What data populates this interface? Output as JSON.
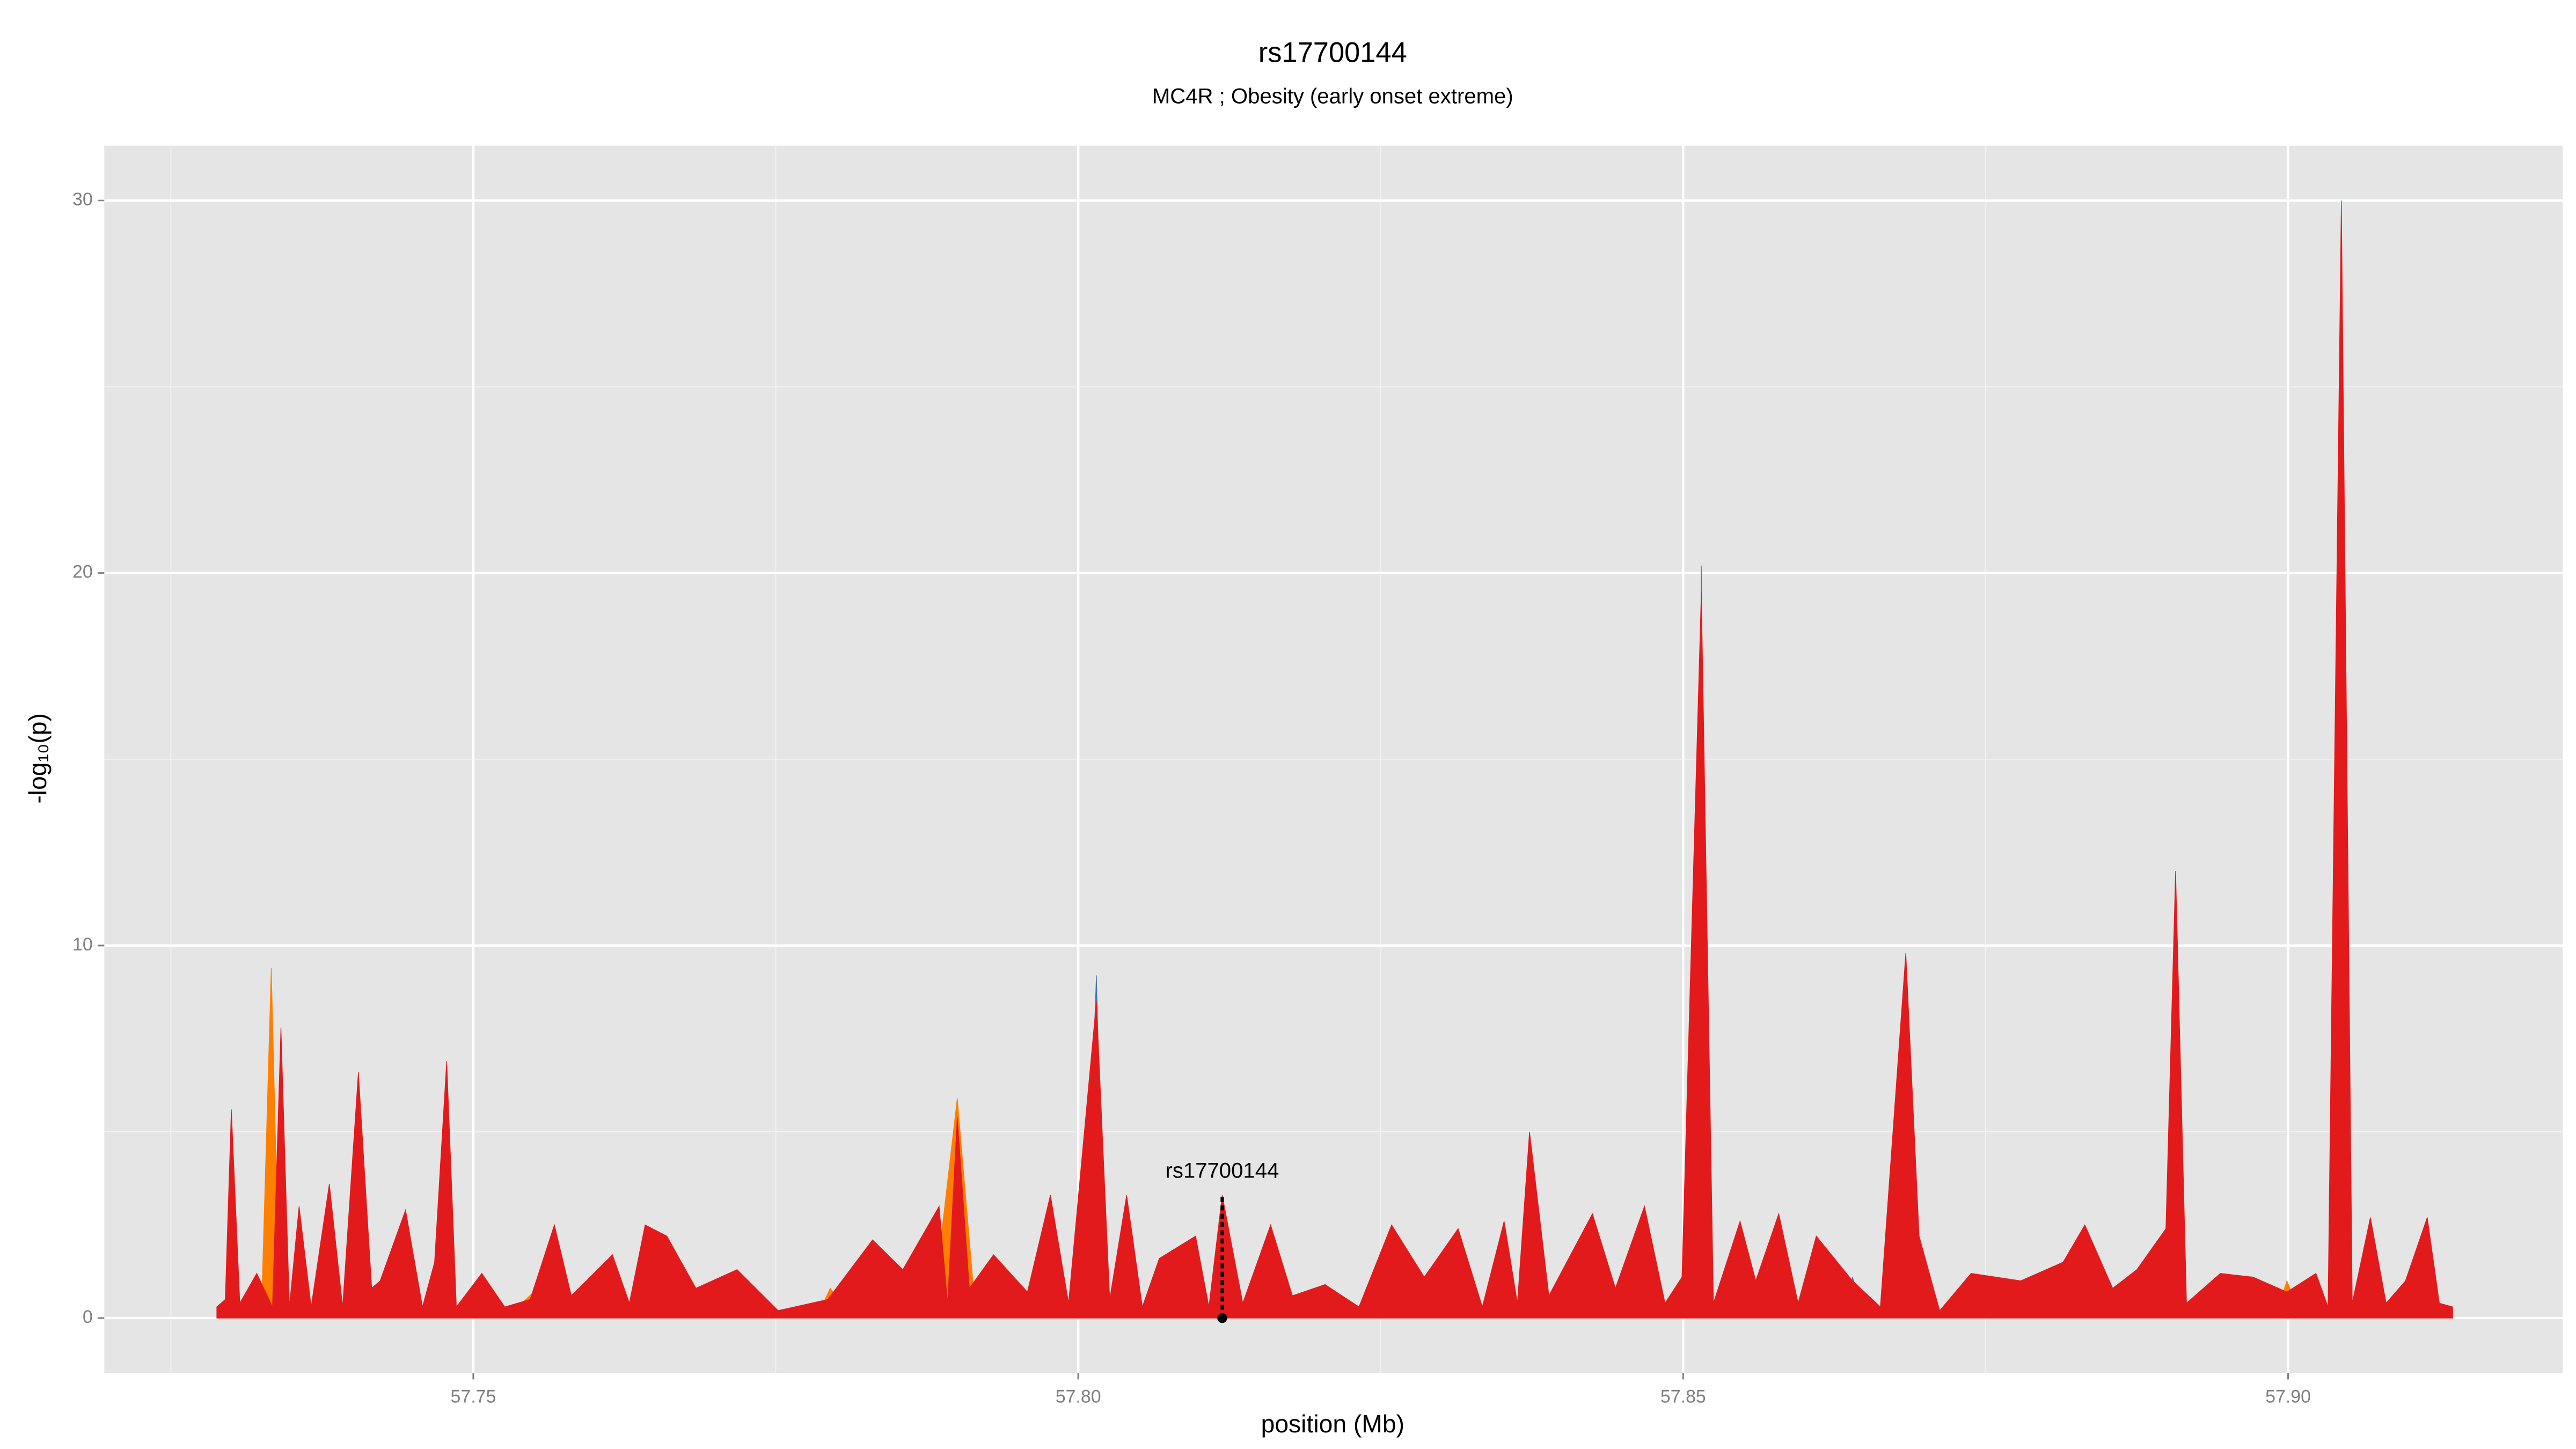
{
  "chart_data": {
    "type": "area",
    "title": "rs17700144",
    "subtitle": "MC4R ; Obesity (early onset extreme)",
    "x_label": "position (Mb)",
    "y_label": "-log₁₀(p)",
    "xlim": [
      57.7195,
      57.9227
    ],
    "ylim": [
      -1.47,
      31.47
    ],
    "xticks": [
      57.75,
      {
        "value": 57.8,
        "label": "57.80"
      },
      57.85,
      {
        "value": 57.9,
        "label": "57.90"
      }
    ],
    "yticks": [
      0,
      10,
      20,
      30
    ],
    "x_minor_ticks": [
      57.725,
      57.775,
      57.825,
      57.875
    ],
    "y_minor_ticks": [
      5,
      15,
      25
    ],
    "grid": true,
    "annotation": {
      "text": "rs17700144",
      "x": 57.8119,
      "y": 0,
      "y_end": 3.3
    },
    "series": [
      {
        "name": "orange",
        "color": "#ff7f00",
        "x": [
          57.7288,
          57.7325,
          57.7333,
          57.734,
          57.753,
          57.756,
          57.758,
          57.7785,
          57.7795,
          57.781,
          57.788,
          57.79,
          57.7915,
          57.7972,
          57.7981,
          57.7992,
          57.899,
          57.8999,
          57.901,
          57.9136
        ],
        "values": [
          0,
          0.3,
          9.4,
          0.2,
          0.1,
          1.0,
          0.1,
          0.1,
          0.8,
          0.1,
          0.3,
          5.9,
          0.2,
          0.2,
          1.5,
          0.1,
          0.1,
          1.0,
          0.1,
          0
        ]
      },
      {
        "name": "blue",
        "color": "#4574b4",
        "x": [
          57.7288,
          57.7375,
          57.7381,
          57.7392,
          57.8005,
          57.8015,
          57.8022,
          57.846,
          57.8468,
          57.8478,
          57.851,
          57.8515,
          57.852,
          57.8635,
          57.864,
          57.8648,
          57.89,
          57.8907,
          57.8914,
          57.9136
        ],
        "values": [
          0,
          0.1,
          3.2,
          0.1,
          0.1,
          9.2,
          0.1,
          0.1,
          2.9,
          0.1,
          0.1,
          20.2,
          0.1,
          0.1,
          1.1,
          0.1,
          0.1,
          11.5,
          0.1,
          0
        ]
      },
      {
        "name": "red",
        "color": "#e31a1c",
        "x": [
          57.7288,
          57.7295,
          57.73,
          57.7307,
          57.7321,
          57.7334,
          57.7341,
          57.7348,
          57.7356,
          57.7366,
          57.7381,
          57.7392,
          57.7405,
          57.7416,
          57.7423,
          57.7444,
          57.7458,
          57.7468,
          57.7478,
          57.7486,
          57.7507,
          57.7526,
          57.7547,
          57.7567,
          57.7581,
          57.7615,
          57.7629,
          57.7642,
          57.766,
          57.7684,
          57.7718,
          57.7752,
          57.7793,
          57.783,
          57.7855,
          57.7885,
          57.7892,
          57.79,
          57.791,
          57.793,
          57.7958,
          57.7977,
          57.7992,
          57.8015,
          57.8026,
          57.804,
          57.8053,
          57.8067,
          57.8097,
          57.8108,
          57.8119,
          57.8136,
          57.8159,
          57.8177,
          57.8204,
          57.8232,
          57.8259,
          57.8286,
          57.8314,
          57.8334,
          57.8352,
          57.8363,
          57.8373,
          57.8389,
          57.8425,
          57.8444,
          57.8468,
          57.8485,
          57.8499,
          57.8515,
          57.8525,
          57.8547,
          57.856,
          57.8579,
          57.8595,
          57.861,
          57.864,
          57.8663,
          57.8684,
          57.8695,
          57.8712,
          57.8738,
          57.8779,
          57.8814,
          57.8832,
          57.8855,
          57.8875,
          57.8899,
          57.8907,
          57.8916,
          57.8944,
          57.8971,
          57.8999,
          57.9023,
          57.9033,
          57.9044,
          57.9053,
          57.9068,
          57.9081,
          57.9097,
          57.9115,
          57.9125,
          57.9136
        ],
        "values": [
          0.3,
          0.5,
          5.6,
          0.4,
          1.2,
          0.3,
          7.8,
          0.3,
          3.0,
          0.3,
          3.6,
          0.3,
          6.6,
          0.8,
          1.0,
          2.9,
          0.3,
          1.5,
          6.9,
          0.3,
          1.2,
          0.3,
          0.5,
          2.5,
          0.6,
          1.7,
          0.4,
          2.5,
          2.2,
          0.8,
          1.3,
          0.2,
          0.5,
          2.1,
          1.3,
          3.0,
          0.4,
          5.4,
          0.8,
          1.7,
          0.7,
          3.3,
          0.4,
          8.5,
          0.5,
          3.3,
          0.3,
          1.6,
          2.2,
          0.3,
          3.3,
          0.4,
          2.5,
          0.6,
          0.9,
          0.3,
          2.5,
          1.1,
          2.4,
          0.3,
          2.6,
          0.4,
          5.0,
          0.6,
          2.8,
          0.8,
          3.0,
          0.4,
          1.1,
          19.5,
          0.4,
          2.6,
          1.0,
          2.8,
          0.4,
          2.2,
          1.0,
          0.3,
          9.8,
          2.2,
          0.2,
          1.2,
          1.0,
          1.5,
          2.5,
          0.8,
          1.3,
          2.4,
          12.0,
          0.4,
          1.2,
          1.1,
          0.7,
          1.2,
          0.3,
          30.0,
          0.4,
          2.7,
          0.4,
          1.0,
          2.7,
          0.4,
          0.3
        ]
      }
    ]
  }
}
